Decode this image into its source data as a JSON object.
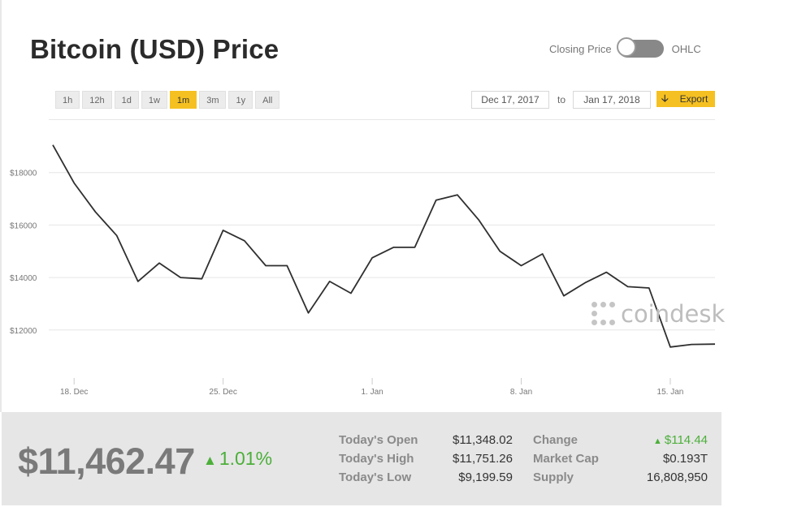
{
  "header": {
    "title": "Bitcoin (USD) Price",
    "toggle_left_label": "Closing Price",
    "toggle_right_label": "OHLC"
  },
  "controls": {
    "ranges": [
      "1h",
      "12h",
      "1d",
      "1w",
      "1m",
      "3m",
      "1y",
      "All"
    ],
    "active_range": "1m",
    "date_from": "Dec 17, 2017",
    "to_label": "to",
    "date_to": "Jan 17, 2018",
    "export_label": "Export"
  },
  "watermark": "coindesk",
  "chart_data": {
    "type": "line",
    "x_tick_labels": [
      "18. Dec",
      "25. Dec",
      "1. Jan",
      "8. Jan",
      "15. Jan"
    ],
    "x_tick_days": [
      1,
      8,
      15,
      22,
      29
    ],
    "y_tick_labels": [
      "$12000",
      "$14000",
      "$16000",
      "$18000"
    ],
    "y_ticks": [
      12000,
      14000,
      16000,
      18000
    ],
    "ylim": [
      10200,
      20000
    ],
    "xlim": [
      0.0,
      31.1
    ],
    "grid": true,
    "color": "#2f2f2f",
    "series": [
      {
        "x": [
          0,
          1,
          2,
          3,
          4,
          5,
          6,
          7,
          8,
          9,
          10,
          11,
          12,
          13,
          14,
          15,
          16,
          17,
          18,
          19,
          20,
          21,
          22,
          23,
          24,
          25,
          26,
          27,
          28,
          29,
          30,
          31.1
        ],
        "values": [
          19050,
          17600,
          16500,
          15600,
          13850,
          14550,
          14000,
          13950,
          15800,
          15400,
          14450,
          14450,
          12650,
          13850,
          13400,
          14750,
          15150,
          15150,
          16950,
          17150,
          16200,
          15000,
          14450,
          14900,
          13300,
          13800,
          14200,
          13650,
          13600,
          11350,
          11450,
          11462
        ]
      }
    ]
  },
  "stats": {
    "price": "$11,462.47",
    "change_pct": "1.01%",
    "open_label": "Today's Open",
    "open_value": "$11,348.02",
    "high_label": "Today's High",
    "high_value": "$11,751.26",
    "low_label": "Today's Low",
    "low_value": "$9,199.59",
    "change_label": "Change",
    "change_value": "$114.44",
    "cap_label": "Market Cap",
    "cap_value": "$0.193T",
    "supply_label": "Supply",
    "supply_value": "16,808,950"
  },
  "colors": {
    "accent": "#f5c021",
    "positive": "#4caf3a",
    "line": "#2f2f2f"
  }
}
